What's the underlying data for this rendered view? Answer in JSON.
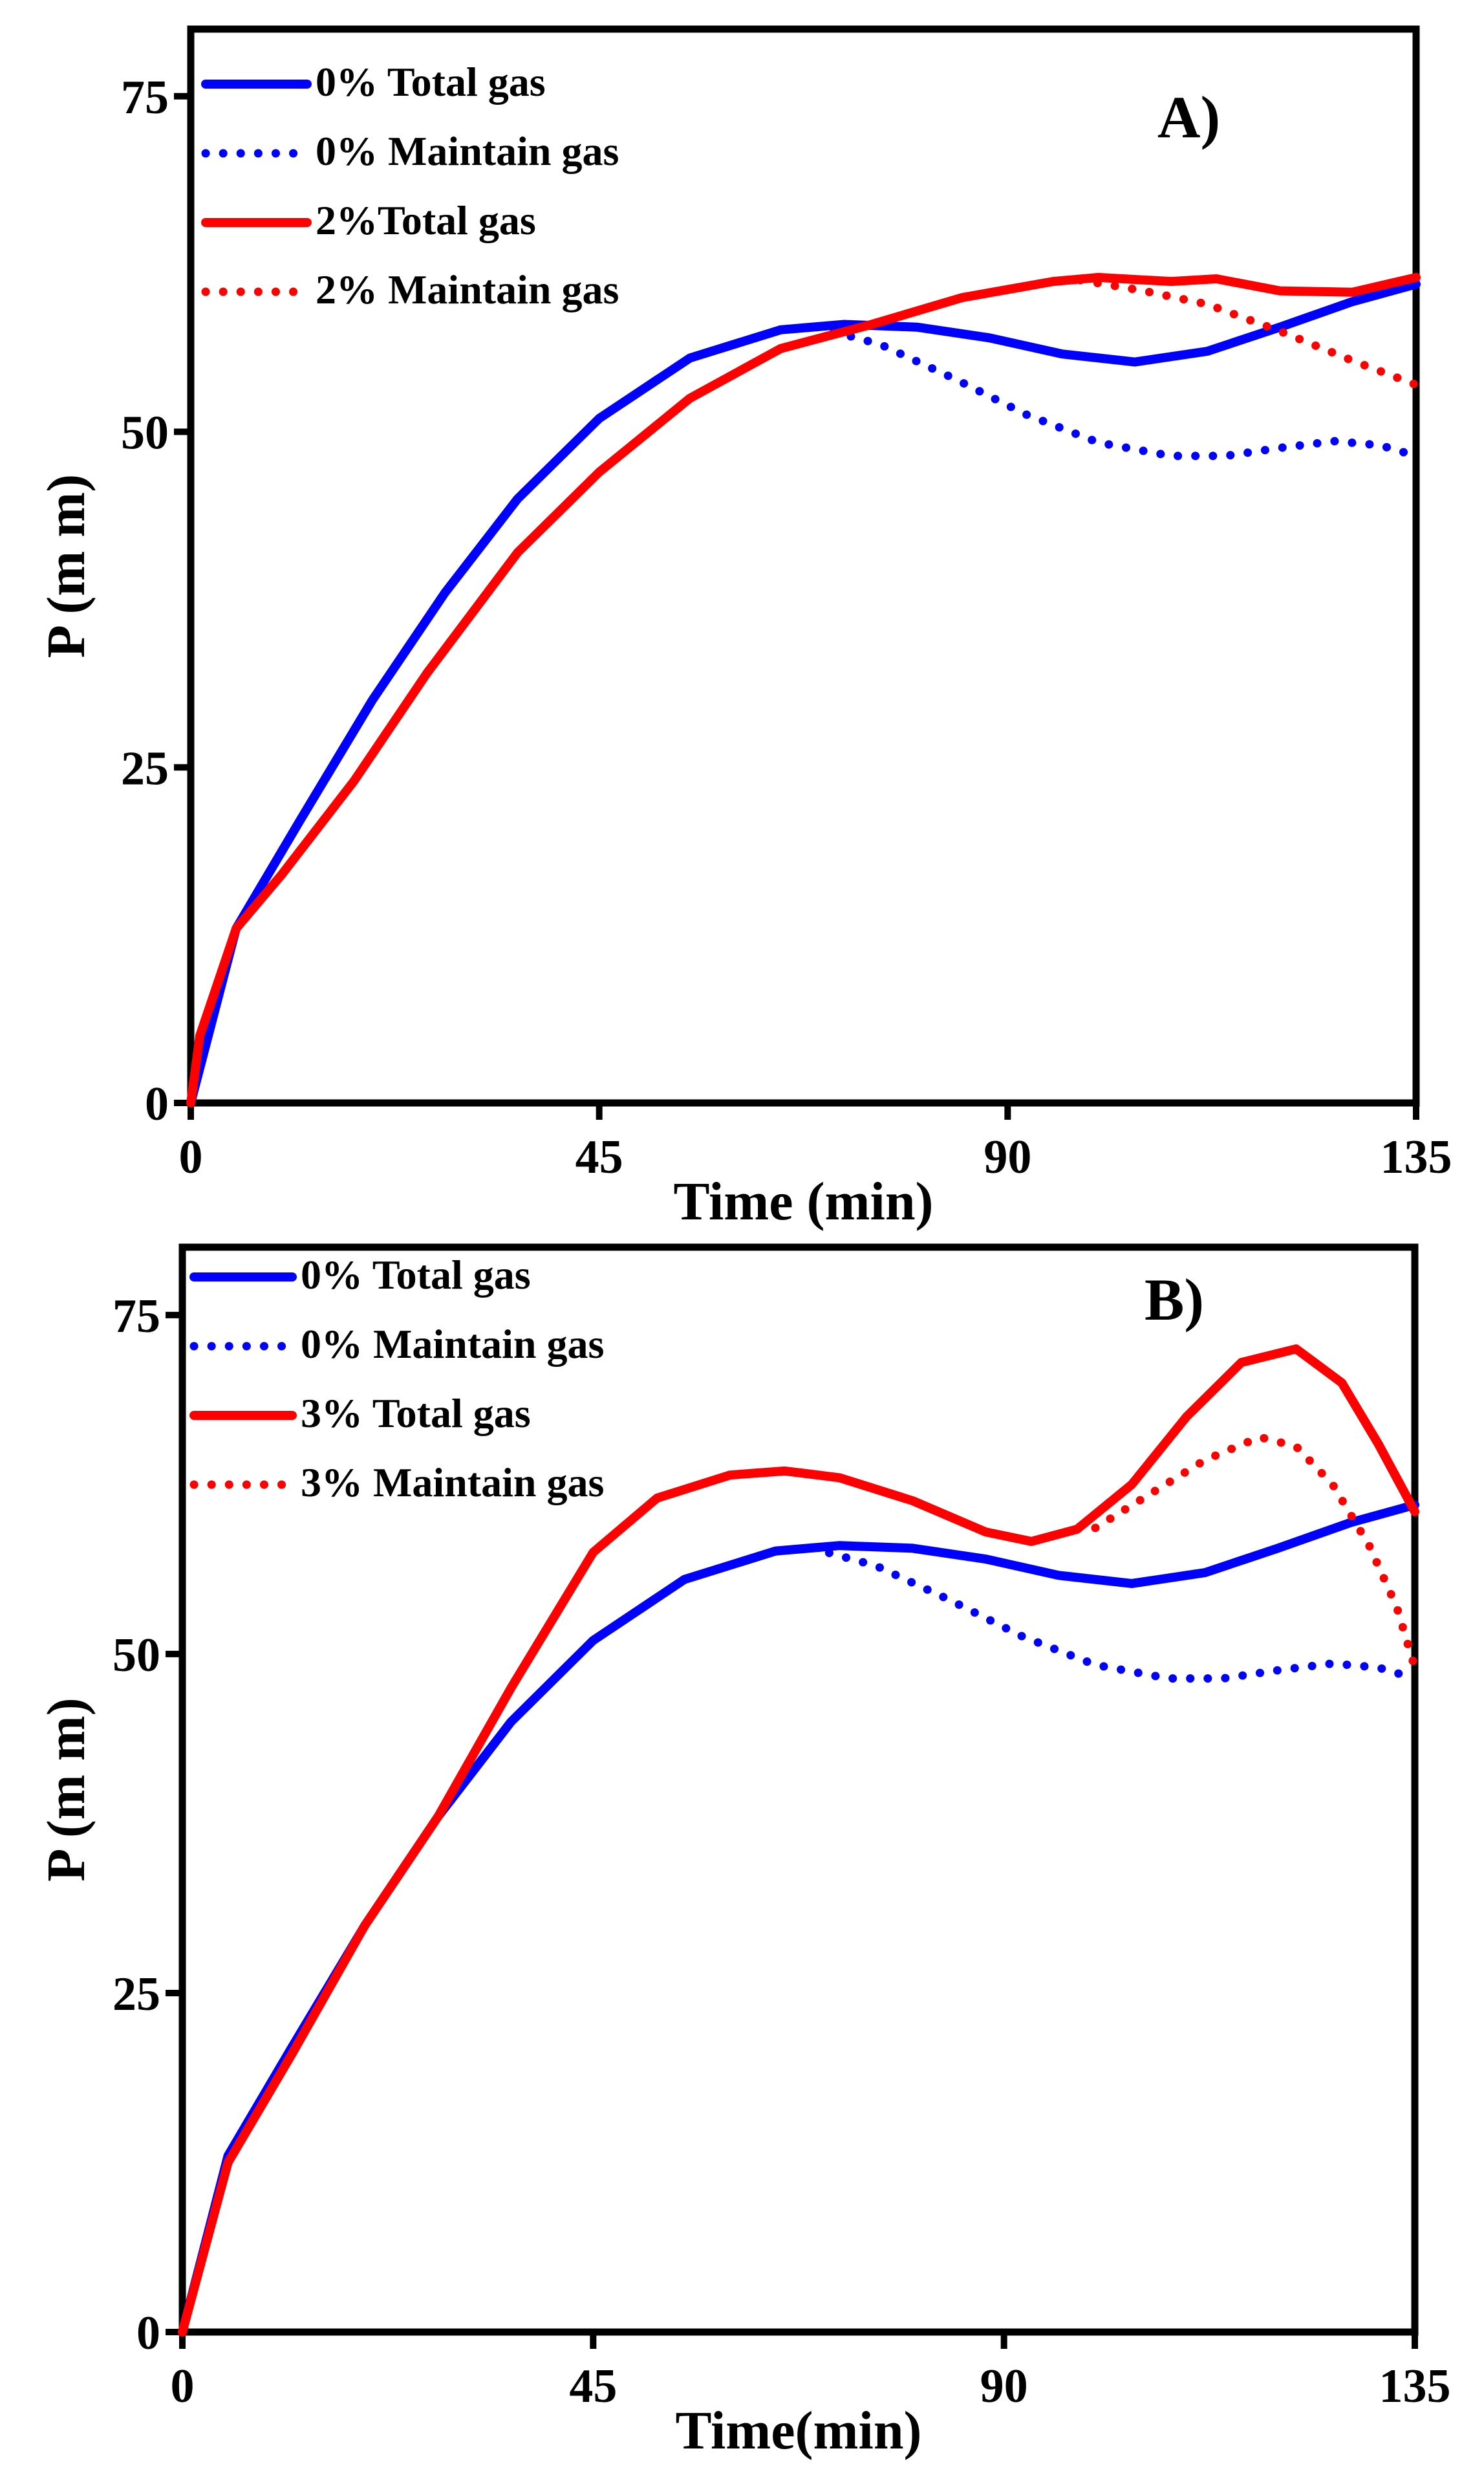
{
  "chart_data": [
    {
      "type": "line",
      "panel_label": "A)",
      "xlabel": "Time (min)",
      "ylabel": "P (m m)",
      "xlim": [
        0,
        135
      ],
      "ylim": [
        0,
        80
      ],
      "xticks": [
        0,
        45,
        90,
        135
      ],
      "yticks": [
        0,
        25,
        50,
        75
      ],
      "grid": false,
      "legend_position": "top-left",
      "series": [
        {
          "name": "0% Total gas",
          "color": "#0000ff",
          "style": "solid",
          "x": [
            0,
            5,
            12,
            20,
            28,
            36,
            45,
            55,
            65,
            72,
            80,
            88,
            96,
            104,
            112,
            120,
            128,
            135
          ],
          "y": [
            0,
            13,
            21,
            30,
            38,
            45,
            51,
            55.5,
            57.6,
            58,
            57.8,
            57,
            55.8,
            55.2,
            56,
            57.8,
            59.7,
            61
          ]
        },
        {
          "name": "0% Maintain gas",
          "color": "#0000ff",
          "style": "dotted",
          "x": [
            69,
            76,
            84,
            92,
            100,
            108,
            114,
            120,
            126,
            131,
            135
          ],
          "y": [
            57.8,
            56.5,
            54,
            51.3,
            49.2,
            48.2,
            48.2,
            48.8,
            49.3,
            49,
            48.2
          ]
        },
        {
          "name": "2%Total gas",
          "color": "#ff0000",
          "style": "solid",
          "x": [
            0,
            1,
            5,
            10,
            18,
            26,
            36,
            45,
            55,
            65,
            75,
            85,
            95,
            100,
            108,
            113,
            120,
            128,
            135
          ],
          "y": [
            0,
            5,
            13,
            17,
            24,
            32,
            41,
            47,
            52.5,
            56.2,
            58,
            60,
            61.2,
            61.5,
            61.2,
            61.4,
            60.5,
            60.4,
            61.5
          ]
        },
        {
          "name": "2% Maintain gas",
          "color": "#ff0000",
          "style": "dotted",
          "x": [
            98,
            105,
            112,
            120,
            128,
            135
          ],
          "y": [
            61.3,
            60.5,
            59.5,
            57.5,
            55.3,
            53.5
          ]
        }
      ]
    },
    {
      "type": "line",
      "panel_label": "B)",
      "xlabel": "Time(min)",
      "ylabel": "P (m m)",
      "xlim": [
        0,
        135
      ],
      "ylim": [
        0,
        80
      ],
      "xticks": [
        0,
        45,
        90,
        135
      ],
      "yticks": [
        0,
        25,
        50,
        75
      ],
      "grid": false,
      "legend_position": "top-left",
      "series": [
        {
          "name": "0% Total gas",
          "color": "#0000ff",
          "style": "solid",
          "x": [
            0,
            5,
            12,
            20,
            28,
            36,
            45,
            55,
            65,
            72,
            80,
            88,
            96,
            104,
            112,
            120,
            128,
            135
          ],
          "y": [
            0,
            13,
            21,
            30,
            38,
            45,
            51,
            55.5,
            57.6,
            58,
            57.8,
            57,
            55.8,
            55.2,
            56,
            57.8,
            59.7,
            61
          ]
        },
        {
          "name": "0% Maintain gas",
          "color": "#0000ff",
          "style": "dotted",
          "x": [
            69,
            76,
            84,
            92,
            100,
            108,
            114,
            120,
            126,
            131,
            135
          ],
          "y": [
            57.8,
            56.5,
            54,
            51.3,
            49.2,
            48.2,
            48.2,
            48.8,
            49.3,
            49,
            48.2
          ]
        },
        {
          "name": "3% Total gas",
          "color": "#ff0000",
          "style": "solid",
          "x": [
            0,
            5,
            12,
            20,
            28,
            36,
            45,
            52,
            60,
            66,
            72,
            80,
            88,
            93,
            98,
            104,
            110,
            116,
            122,
            127,
            131,
            135
          ],
          "y": [
            0,
            12.5,
            20.5,
            30,
            38,
            47.5,
            57.5,
            61.5,
            63.2,
            63.5,
            63,
            61.3,
            59,
            58.3,
            59.2,
            62.5,
            67.5,
            71.5,
            72.5,
            70,
            65.5,
            60.5
          ]
        },
        {
          "name": "3% Maintain gas",
          "color": "#ff0000",
          "style": "dotted",
          "x": [
            100,
            106,
            112,
            118,
            122,
            126,
            130,
            133,
            135
          ],
          "y": [
            59.3,
            61.8,
            64.3,
            66,
            65.3,
            62.5,
            58,
            53.5,
            49
          ]
        }
      ]
    }
  ]
}
